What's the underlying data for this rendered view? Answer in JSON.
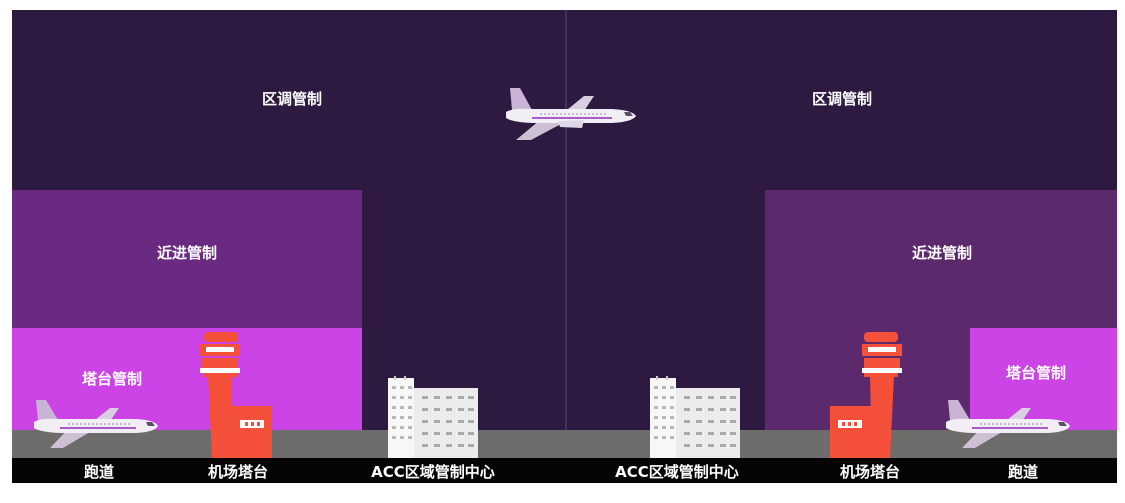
{
  "zones": {
    "area_left": "区调管制",
    "area_right": "区调管制",
    "approach_left": "近进管制",
    "approach_right": "近进管制",
    "tower_left": "塔台管制",
    "tower_right": "塔台管制"
  },
  "ground_labels": {
    "runway_left": "跑道",
    "airport_tower_left": "机场塔台",
    "acc_left": "ACC区域管制中心",
    "acc_right": "ACC区域管制中心",
    "airport_tower_right": "机场塔台",
    "runway_right": "跑道"
  },
  "colors": {
    "sky": "#2e1a40",
    "approach_left": "#6a2a82",
    "approach_right": "#5c2a6c",
    "tower_zone": "#cc44e6",
    "tower_building": "#f4503a",
    "ground": "#6e6b6b",
    "label_bar": "#050505"
  },
  "icons": [
    "airplane-icon",
    "control-tower-icon",
    "office-building-icon"
  ]
}
